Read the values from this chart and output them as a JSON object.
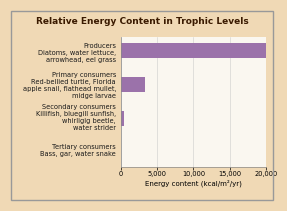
{
  "title": "Relative Energy Content in Trophic Levels",
  "categories": [
    "Producers\nDiatoms, water lettuce,\narrowhead, eel grass",
    "Primary consumers\nRed-bellied turtle, Florida\napple snail, flathead mullet,\nmidge larvae",
    "Secondary consumers\nKillifish, bluegill sunfish,\nwhirligig beetle,\nwater strider",
    "Tertiary consumers\nBass, gar, water snake"
  ],
  "values": [
    20810,
    3368,
    383,
    48
  ],
  "bar_color": "#9b72aa",
  "title_bg_color": "#e8a96a",
  "outer_bg_color": "#f0d9b5",
  "plot_bg_color": "#faf7f0",
  "title_text_color": "#3a1a00",
  "label_text_color": "#1a1a1a",
  "xlabel": "Energy content (kcal/m²/yr)",
  "xlim": [
    0,
    20000
  ],
  "xticks": [
    0,
    5000,
    10000,
    15000,
    20000
  ],
  "xtick_labels": [
    "0",
    "5,000",
    "10,000",
    "15,000",
    "20,000"
  ],
  "title_fontsize": 6.5,
  "label_fontsize": 4.8,
  "xlabel_fontsize": 5.0,
  "tick_fontsize": 4.8
}
